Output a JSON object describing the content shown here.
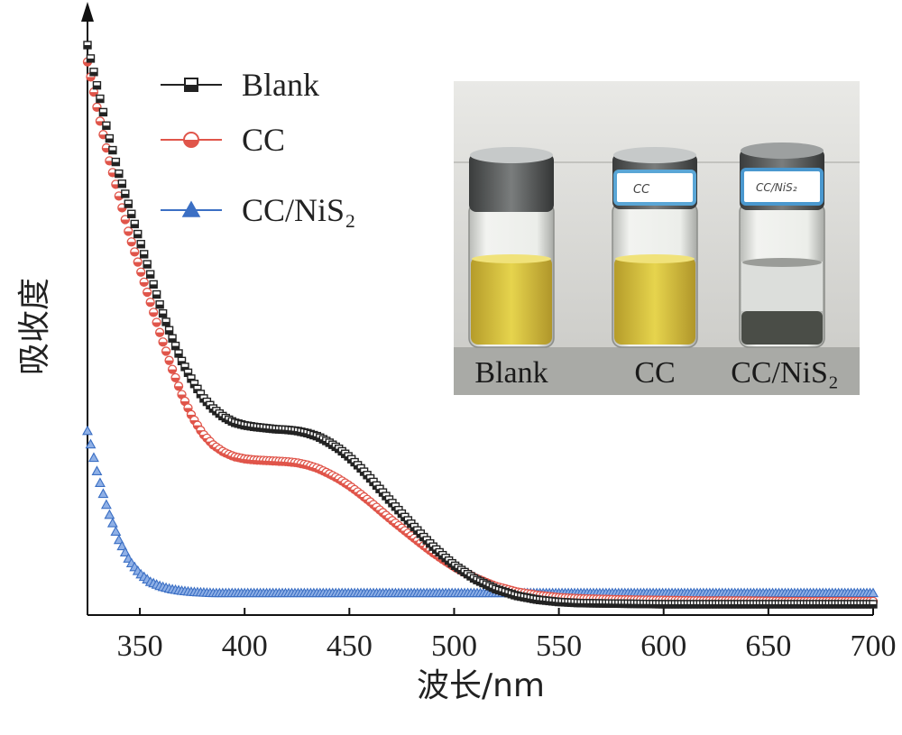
{
  "chart_data": {
    "type": "scatter",
    "xlabel": "波长/nm",
    "ylabel": "吸收度",
    "xlim": [
      325,
      700
    ],
    "ylim": [
      0,
      1
    ],
    "x_ticks": [
      "350",
      "400",
      "450",
      "500",
      "550",
      "600",
      "650",
      "700"
    ],
    "grid": false,
    "legend_position": "top-left",
    "series": [
      {
        "name": "Blank",
        "marker": "square-half-filled",
        "color": "#222222",
        "x": [
          325,
          330,
          335,
          340,
          345,
          350,
          355,
          360,
          365,
          370,
          375,
          380,
          385,
          390,
          395,
          400,
          405,
          410,
          415,
          420,
          425,
          430,
          435,
          440,
          445,
          450,
          455,
          460,
          465,
          470,
          475,
          480,
          485,
          490,
          495,
          500,
          510,
          520,
          530,
          540,
          550,
          560,
          580,
          600,
          620,
          640,
          660,
          680,
          700
        ],
        "y": [
          1.0,
          0.92,
          0.84,
          0.77,
          0.71,
          0.65,
          0.59,
          0.53,
          0.48,
          0.435,
          0.4,
          0.37,
          0.35,
          0.335,
          0.325,
          0.32,
          0.317,
          0.315,
          0.313,
          0.312,
          0.31,
          0.306,
          0.3,
          0.29,
          0.278,
          0.263,
          0.245,
          0.225,
          0.204,
          0.183,
          0.162,
          0.142,
          0.122,
          0.103,
          0.086,
          0.07,
          0.045,
          0.027,
          0.015,
          0.008,
          0.004,
          0.002,
          0.001,
          0.0,
          0.0,
          0.0,
          0.0,
          0.0,
          0.0
        ]
      },
      {
        "name": "CC",
        "marker": "circle-half-filled",
        "color": "#e0554a",
        "x": [
          325,
          330,
          335,
          340,
          345,
          350,
          355,
          360,
          365,
          370,
          375,
          380,
          385,
          390,
          395,
          400,
          405,
          410,
          415,
          420,
          425,
          430,
          435,
          440,
          445,
          450,
          455,
          460,
          465,
          470,
          475,
          480,
          485,
          490,
          495,
          500,
          510,
          520,
          530,
          540,
          550,
          560,
          580,
          600,
          620,
          640,
          660,
          680,
          700
        ],
        "y": [
          0.97,
          0.88,
          0.8,
          0.73,
          0.66,
          0.6,
          0.54,
          0.48,
          0.425,
          0.375,
          0.335,
          0.305,
          0.285,
          0.272,
          0.264,
          0.26,
          0.258,
          0.257,
          0.256,
          0.255,
          0.253,
          0.249,
          0.243,
          0.234,
          0.224,
          0.212,
          0.198,
          0.183,
          0.167,
          0.151,
          0.136,
          0.121,
          0.106,
          0.092,
          0.079,
          0.067,
          0.047,
          0.032,
          0.022,
          0.016,
          0.012,
          0.01,
          0.008,
          0.007,
          0.006,
          0.006,
          0.005,
          0.005,
          0.005
        ]
      },
      {
        "name": "CC/NiS₂",
        "marker": "triangle-half-filled",
        "color": "#3b6fc4",
        "x": [
          325,
          330,
          335,
          340,
          345,
          350,
          355,
          360,
          365,
          370,
          375,
          380,
          385,
          390,
          395,
          400,
          410,
          420,
          440,
          460,
          480,
          500,
          520,
          540,
          560,
          580,
          600,
          620,
          640,
          660,
          680,
          700
        ],
        "y": [
          0.31,
          0.23,
          0.165,
          0.115,
          0.078,
          0.055,
          0.04,
          0.032,
          0.027,
          0.024,
          0.022,
          0.021,
          0.02,
          0.02,
          0.02,
          0.02,
          0.02,
          0.02,
          0.02,
          0.02,
          0.02,
          0.02,
          0.02,
          0.02,
          0.02,
          0.02,
          0.02,
          0.02,
          0.02,
          0.02,
          0.02,
          0.02
        ]
      }
    ],
    "inset": {
      "labels": [
        "Blank",
        "CC",
        "CC/NiS₂"
      ],
      "vial_caps": [
        "",
        "CC",
        "CC/NiS₂"
      ]
    }
  }
}
